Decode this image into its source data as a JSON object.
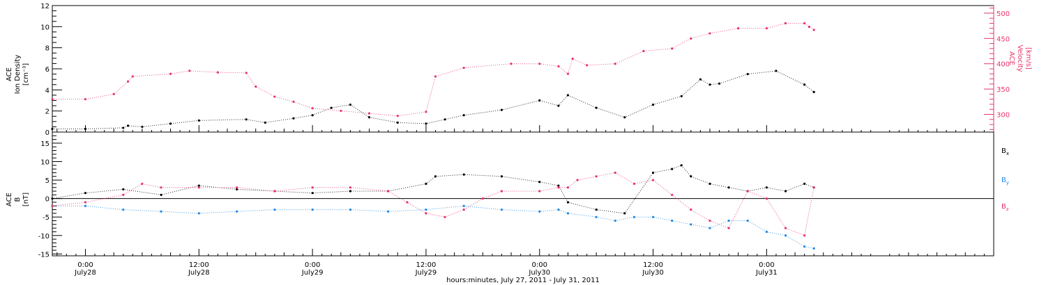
{
  "chart_data": [
    {
      "type": "scatter",
      "panel": "top",
      "ylabel_left": [
        "ACE",
        "Ion Density",
        "[cm⁻³]"
      ],
      "ylabel_right": [
        "ACE",
        "Velocity",
        "[km/s]"
      ],
      "ylim_left": [
        0,
        12
      ],
      "yticks_left": [
        "0",
        "2",
        "4",
        "6",
        "8",
        "10",
        "12"
      ],
      "ylim_right": [
        265,
        515
      ],
      "yticks_right": [
        "300",
        "350",
        "400",
        "450",
        "500"
      ],
      "right_axis_color": "#e8336a",
      "series": [
        {
          "name": "",
          "axis": "left",
          "color": "#000000",
          "x": [
            -3.5,
            0,
            4,
            4.5,
            6,
            9,
            12,
            17,
            19,
            22,
            24,
            26,
            28,
            30,
            33,
            36,
            38,
            40,
            44,
            48,
            50,
            51,
            54,
            57,
            60,
            63,
            65,
            66,
            67,
            70,
            73,
            76,
            77
          ],
          "y": [
            0.3,
            0.3,
            0.4,
            0.6,
            0.5,
            0.8,
            1.1,
            1.2,
            0.9,
            1.3,
            1.6,
            2.3,
            2.6,
            1.4,
            0.9,
            0.8,
            1.2,
            1.6,
            2.1,
            3.0,
            2.5,
            3.5,
            2.3,
            1.4,
            2.6,
            3.4,
            5.0,
            4.5,
            4.6,
            5.5,
            5.8,
            4.5,
            3.8
          ]
        },
        {
          "name": "",
          "axis": "right",
          "color": "#e8336a",
          "x": [
            -3.5,
            0,
            3,
            4.5,
            5,
            9,
            11,
            14,
            17,
            18,
            20,
            22,
            24,
            27,
            30,
            33,
            36,
            37,
            40,
            45,
            48,
            50,
            51,
            51.5,
            53,
            56,
            59,
            62,
            64,
            66,
            69,
            72,
            74,
            76,
            76.5,
            77
          ],
          "y": [
            330,
            330,
            340,
            365,
            375,
            380,
            386,
            383,
            382,
            355,
            335,
            325,
            312,
            307,
            302,
            297,
            305,
            375,
            392,
            400,
            400,
            395,
            380,
            410,
            397,
            400,
            425,
            430,
            450,
            460,
            470,
            470,
            480,
            480,
            473,
            467
          ]
        }
      ]
    },
    {
      "type": "scatter",
      "panel": "bottom",
      "ylabel": [
        "ACE",
        "B",
        "[nT]"
      ],
      "ylim": [
        -15.5,
        18
      ],
      "yticks": [
        "-15",
        "-10",
        "-5",
        "0",
        "5",
        "10",
        "15"
      ],
      "zero_line": true,
      "legend_position": "right",
      "legend": [
        {
          "label": "B",
          "sub": "x",
          "color": "#000000"
        },
        {
          "label": "B",
          "sub": "y",
          "color": "#1e88e5"
        },
        {
          "label": "B",
          "sub": "z",
          "color": "#e8336a"
        }
      ],
      "series": [
        {
          "name": "Bx",
          "color": "#000000",
          "x": [
            -3.5,
            0,
            4,
            8,
            12,
            16,
            20,
            24,
            28,
            32,
            36,
            37,
            40,
            44,
            48,
            50,
            51,
            54,
            57,
            60,
            62,
            63,
            64,
            66,
            68,
            70,
            72,
            74,
            76,
            77
          ],
          "y": [
            0,
            1.5,
            2.5,
            1,
            3.5,
            2.5,
            2,
            1.5,
            2,
            2,
            4,
            6,
            6.5,
            6,
            4.5,
            3.5,
            -1,
            -3,
            -4,
            7,
            8,
            9,
            6,
            4,
            3,
            2,
            3,
            2,
            4,
            3
          ]
        },
        {
          "name": "By",
          "color": "#1e88e5",
          "x": [
            -3.5,
            0,
            4,
            8,
            12,
            16,
            20,
            24,
            28,
            32,
            36,
            40,
            44,
            48,
            50,
            51,
            54,
            56,
            58,
            60,
            62,
            64,
            66,
            68,
            70,
            72,
            74,
            76,
            77
          ],
          "y": [
            -2,
            -2,
            -3,
            -3.5,
            -4,
            -3.5,
            -3,
            -3,
            -3,
            -3.5,
            -3,
            -2,
            -3,
            -3.5,
            -3,
            -4,
            -5,
            -6,
            -5,
            -5,
            -6,
            -7,
            -8,
            -6,
            -6,
            -9,
            -10,
            -13,
            -13.5
          ]
        },
        {
          "name": "Bz",
          "color": "#e8336a",
          "x": [
            -3.5,
            0,
            4,
            6,
            8,
            12,
            16,
            20,
            24,
            28,
            32,
            34,
            36,
            38,
            40,
            42,
            44,
            48,
            50,
            51,
            52,
            54,
            56,
            58,
            60,
            62,
            64,
            66,
            68,
            70,
            72,
            74,
            76,
            77
          ],
          "y": [
            -2,
            -1,
            1,
            4,
            3,
            3,
            3,
            2,
            3,
            3,
            2,
            -1,
            -4,
            -5,
            -3,
            0,
            2,
            2,
            3,
            3,
            5,
            6,
            7,
            4,
            5,
            1,
            -3,
            -6,
            -8,
            2,
            0,
            -8,
            -10,
            3
          ]
        }
      ]
    },
    {
      "type": "axis",
      "xlabel": "hours:minutes, July 27, 2011 - July 31, 2011",
      "xlim": [
        -3.5,
        96
      ],
      "x_major": [
        {
          "x": 0,
          "time": "0:00",
          "date": "July28"
        },
        {
          "x": 12,
          "time": "12:00",
          "date": "July28"
        },
        {
          "x": 24,
          "time": "0:00",
          "date": "July29"
        },
        {
          "x": 36,
          "time": "12:00",
          "date": "July29"
        },
        {
          "x": 48,
          "time": "0:00",
          "date": "July30"
        },
        {
          "x": 60,
          "time": "12:00",
          "date": "July30"
        },
        {
          "x": 72,
          "time": "0:00",
          "date": "July31"
        }
      ]
    }
  ]
}
